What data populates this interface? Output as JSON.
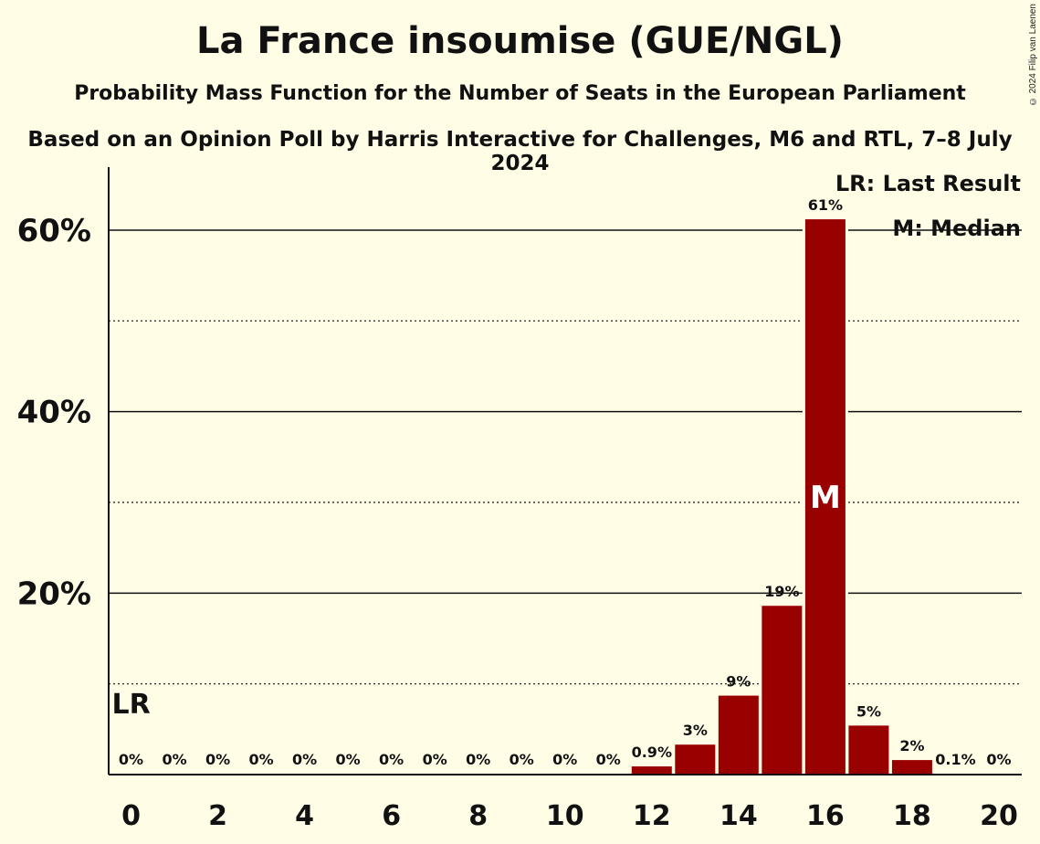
{
  "header": {
    "title": "La France insoumise (GUE/NGL)",
    "subtitle1": "Probability Mass Function for the Number of Seats in the European Parliament",
    "subtitle2": "Based on an Opinion Poll by Harris Interactive for Challenges, M6 and RTL, 7–8 July 2024",
    "copyright": "© 2024 Filip van Laenen"
  },
  "legend": {
    "last_result": "LR: Last Result",
    "median": "M: Median"
  },
  "markers": {
    "last_result_label": "LR",
    "last_result_seat": 0,
    "median_label": "M",
    "median_seat": 16
  },
  "colors": {
    "background": "#fffde6",
    "bar": "#990000"
  },
  "chart_data": {
    "type": "bar",
    "categories": [
      0,
      1,
      2,
      3,
      4,
      5,
      6,
      7,
      8,
      9,
      10,
      11,
      12,
      13,
      14,
      15,
      16,
      17,
      18,
      19,
      20
    ],
    "values": [
      0,
      0,
      0,
      0,
      0,
      0,
      0,
      0,
      0,
      0,
      0,
      0,
      0.9,
      3.3,
      8.7,
      18.6,
      61.2,
      5.4,
      1.6,
      0.1,
      0
    ],
    "value_labels": [
      "0%",
      "0%",
      "0%",
      "0%",
      "0%",
      "0%",
      "0%",
      "0%",
      "0%",
      "0%",
      "0%",
      "0%",
      "0.9%",
      "3%",
      "9%",
      "19%",
      "61%",
      "5%",
      "2%",
      "0.1%",
      "0%"
    ],
    "x_tick_labels": [
      "0",
      "2",
      "4",
      "6",
      "8",
      "10",
      "12",
      "14",
      "16",
      "18",
      "20"
    ],
    "y_tick_labels": [
      "20%",
      "40%",
      "60%"
    ],
    "y_ticks": [
      20,
      40,
      60
    ],
    "y_minor_ticks": [
      10,
      30,
      50
    ],
    "ylim": [
      0,
      67
    ],
    "grid": true
  }
}
